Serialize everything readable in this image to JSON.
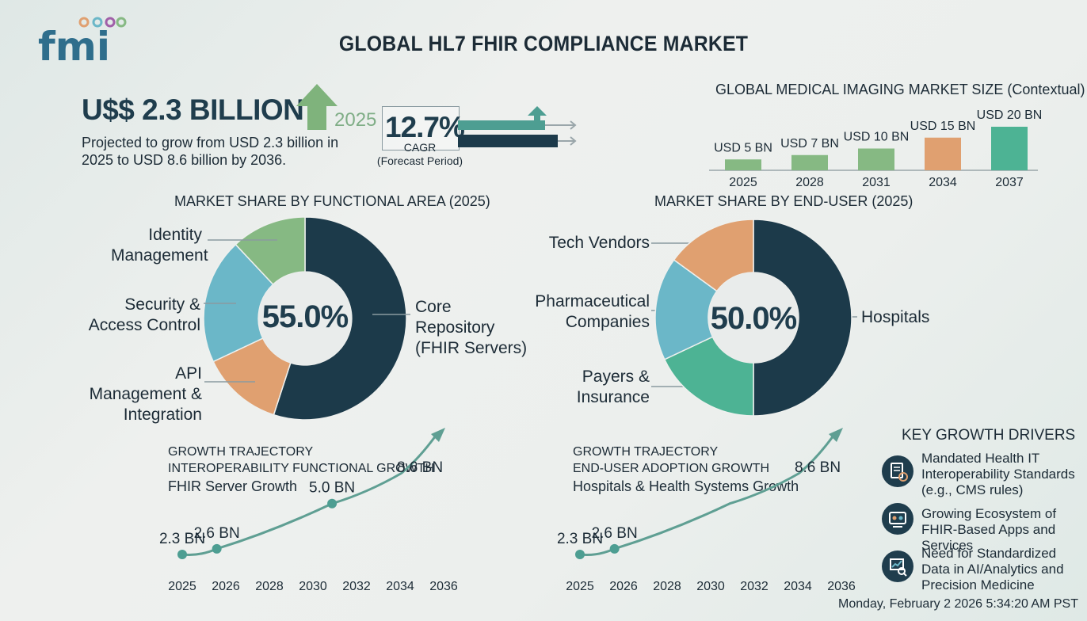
{
  "brand": {
    "logo_text": "fmi"
  },
  "title": "GLOBAL HL7 FHIR COMPLIANCE MARKET",
  "headline": {
    "value": "U$$ 2.3 BILLION",
    "year": "2025",
    "description": "Projected to grow from USD 2.3 billion in 2025 to USD 8.6 billion by 2036."
  },
  "cagr": {
    "value": "12.7%",
    "label": "CAGR",
    "period": "(Forecast Period)"
  },
  "colors": {
    "navy": "#1c3a4a",
    "teal_blue": "#6bb7c8",
    "green_light": "#86b983",
    "orange": "#e0a070",
    "teal_green": "#4db394",
    "line": "#5f9f93"
  },
  "icons": [
    "arrow-up-icon",
    "regulation-icon",
    "apps-ecosystem-icon",
    "analytics-icon"
  ],
  "chart_data": [
    {
      "type": "bar",
      "title": "GLOBAL MEDICAL IMAGING MARKET SIZE (Contextual)",
      "categories": [
        "2025",
        "2028",
        "2031",
        "2034",
        "2037"
      ],
      "values": [
        5,
        7,
        10,
        15,
        20
      ],
      "data_labels": [
        "USD 5 BN",
        "USD 7 BN",
        "USD 10 BN",
        "USD 15 BN",
        "USD 20 BN"
      ],
      "bar_colors": [
        "#86b983",
        "#86b983",
        "#86b983",
        "#e0a070",
        "#4db394"
      ],
      "ylim": [
        0,
        20
      ]
    },
    {
      "type": "pie",
      "title": "MARKET SHARE BY FUNCTIONAL AREA (2025)",
      "center_label": "55.0%",
      "slices": [
        {
          "label": "Core Repository (FHIR Servers)",
          "value": 55,
          "color": "#1c3a4a"
        },
        {
          "label": "API Management & Integration",
          "value": 13,
          "color": "#e0a070"
        },
        {
          "label": "Security & Access Control",
          "value": 20,
          "color": "#6bb7c8"
        },
        {
          "label": "Identity Management",
          "value": 12,
          "color": "#86b983"
        }
      ]
    },
    {
      "type": "pie",
      "title": "MARKET SHARE BY END-USER (2025)",
      "center_label": "50.0%",
      "slices": [
        {
          "label": "Hospitals",
          "value": 50,
          "color": "#1c3a4a"
        },
        {
          "label": "Payers & Insurance",
          "value": 18,
          "color": "#4db394"
        },
        {
          "label": "Pharmaceutical Companies",
          "value": 17,
          "color": "#6bb7c8"
        },
        {
          "label": "Tech Vendors",
          "value": 15,
          "color": "#e0a070"
        }
      ]
    },
    {
      "type": "line",
      "title": "GROWTH TRAJECTORY",
      "subtitle": "INTEROPERABILITY FUNCTIONAL GROWTH",
      "series_label": "FHIR Server Growth",
      "x_ticks": [
        "2025",
        "2026",
        "2028",
        "2030",
        "2032",
        "2034",
        "2036"
      ],
      "points": [
        {
          "x": 2025,
          "y": 2.3,
          "label": "2.3 BN",
          "marker": true
        },
        {
          "x": 2026.5,
          "y": 2.6,
          "label": "2.6 BN",
          "marker": true
        },
        {
          "x": 2031.5,
          "y": 5.0,
          "label": "5.0 BN",
          "marker": true
        },
        {
          "x": 2034.5,
          "y": 6.6,
          "label": "",
          "marker": false
        },
        {
          "x": 2036,
          "y": 8.6,
          "label": "8.6 BN",
          "marker": false
        }
      ]
    },
    {
      "type": "line",
      "title": "GROWTH TRAJECTORY",
      "subtitle": "END-USER ADOPTION GROWTH",
      "series_label": "Hospitals & Health Systems Growth",
      "x_ticks": [
        "2025",
        "2026",
        "2028",
        "2030",
        "2032",
        "2034",
        "2036"
      ],
      "points": [
        {
          "x": 2025,
          "y": 2.3,
          "label": "2.3 BN",
          "marker": true
        },
        {
          "x": 2026.5,
          "y": 2.6,
          "label": "2.6 BN",
          "marker": true
        },
        {
          "x": 2031.5,
          "y": 5.0,
          "label": "",
          "marker": false
        },
        {
          "x": 2034.5,
          "y": 6.6,
          "label": "",
          "marker": false
        },
        {
          "x": 2036,
          "y": 8.6,
          "label": "8.6 BN",
          "marker": false
        }
      ]
    }
  ],
  "drivers": {
    "title": "KEY GROWTH DRIVERS",
    "items": [
      {
        "text": "Mandated Health IT Interoperability Standards (e.g., CMS rules)"
      },
      {
        "text": "Growing Ecosystem of FHIR-Based Apps and Services"
      },
      {
        "text": "Need for Standardized Data in AI/Analytics and Precision Medicine"
      }
    ]
  },
  "timestamp": "Monday, February 2 2026 5:34:20 AM PST"
}
